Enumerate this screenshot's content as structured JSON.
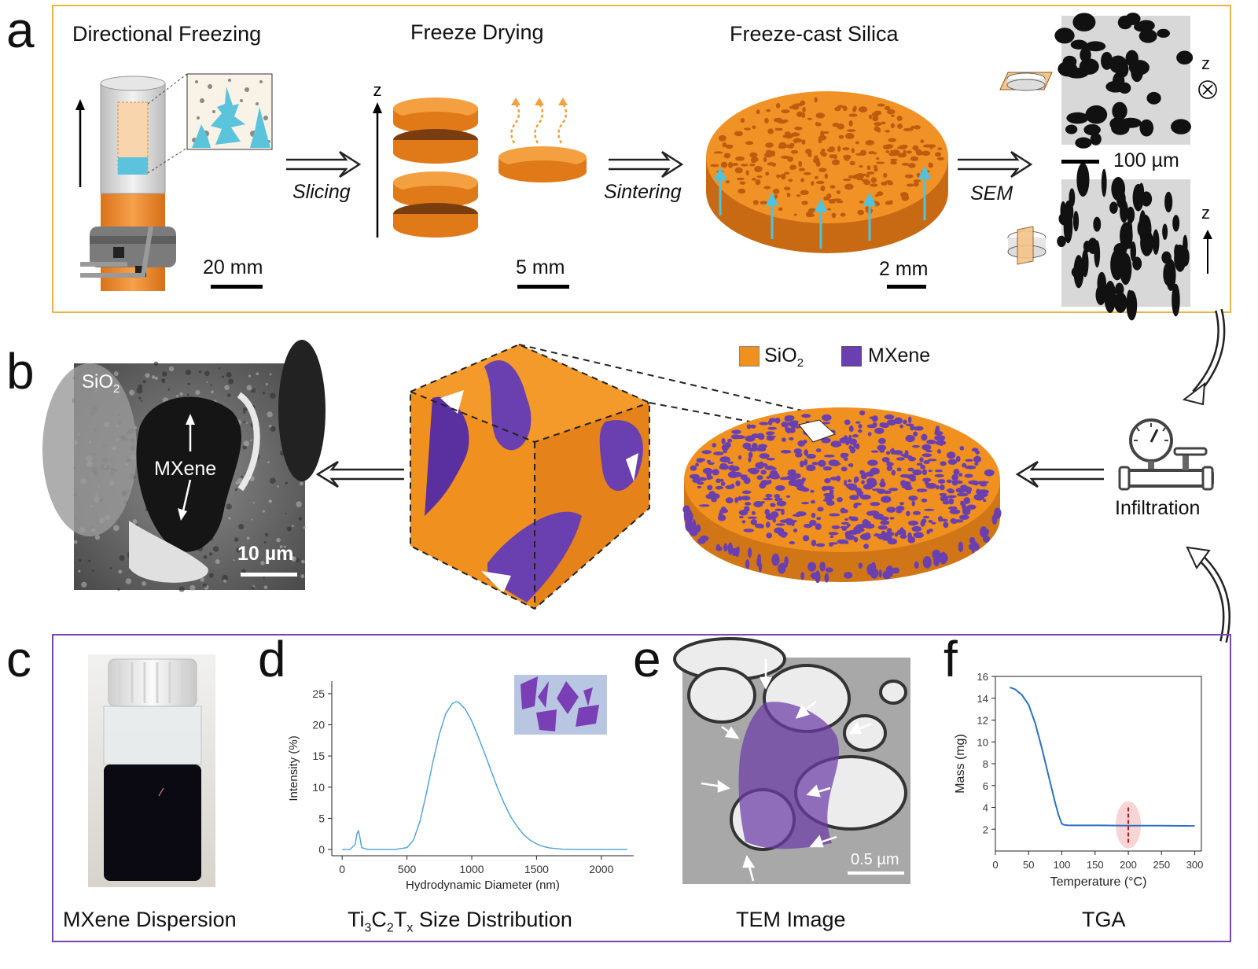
{
  "panels": {
    "a": "a",
    "b": "b",
    "c": "c",
    "d": "d",
    "e": "e",
    "f": "f"
  },
  "a": {
    "titles": [
      "Directional Freezing",
      "Freeze Drying",
      "Freeze-cast Silica"
    ],
    "steps": [
      "Slicing",
      "Sintering",
      "SEM"
    ],
    "scales": [
      "20 mm",
      "5 mm",
      "2 mm",
      "100 µm"
    ],
    "axis_z": "z"
  },
  "b": {
    "sem_sio2": "SiO",
    "sem_sub2": "2",
    "sem_mxene": "MXene",
    "sem_scale": "10 µm",
    "legend": {
      "sio2": "SiO",
      "sio2_sub": "2",
      "mxene": "MXene",
      "sio2_color": "#f0901e",
      "mxene_color": "#6a3fb0"
    },
    "infiltration": "Infiltration"
  },
  "captions": {
    "c": "MXene Dispersion",
    "d_pre": "Ti",
    "d_s1": "3",
    "d_mid1": "C",
    "d_s2": "2",
    "d_mid2": "T",
    "d_s3": "x",
    "d_post": " Size Distribution",
    "e": "TEM Image",
    "f": "TGA"
  },
  "e_scale": "0.5 µm",
  "chart_data": [
    {
      "type": "line",
      "xlabel": "Hydrodynamic Diameter (nm)",
      "ylabel": "Intensity (%)",
      "xlim": [
        -80,
        2250
      ],
      "ylim": [
        -1,
        27
      ],
      "xticks": [
        "0",
        "500",
        "1000",
        "1500",
        "2000"
      ],
      "yticks": [
        "0",
        "5",
        "10",
        "15",
        "20",
        "25"
      ],
      "x": [
        0,
        60,
        100,
        115,
        125,
        135,
        150,
        200,
        300,
        400,
        500,
        550,
        600,
        650,
        700,
        750,
        800,
        850,
        880,
        900,
        950,
        1000,
        1050,
        1100,
        1150,
        1200,
        1250,
        1300,
        1350,
        1400,
        1450,
        1500,
        1550,
        1600,
        1700,
        1800,
        2000,
        2200
      ],
      "y": [
        0,
        0,
        0.8,
        2.6,
        3.0,
        2.2,
        0.3,
        0,
        0,
        0,
        0.3,
        1.5,
        4.5,
        9,
        14,
        18.5,
        21.8,
        23.4,
        23.7,
        23.6,
        22.5,
        20.6,
        18.1,
        15.4,
        12.6,
        9.8,
        7.4,
        5.3,
        3.7,
        2.4,
        1.5,
        0.9,
        0.5,
        0.25,
        0.05,
        0,
        0,
        0
      ]
    },
    {
      "type": "line",
      "xlabel": "Temperature (°C)",
      "ylabel": "Mass (mg)",
      "xlim": [
        0,
        310
      ],
      "ylim": [
        0,
        16
      ],
      "xticks": [
        "0",
        "50",
        "100",
        "150",
        "200",
        "250",
        "300"
      ],
      "yticks": [
        "2",
        "4",
        "6",
        "8",
        "10",
        "12",
        "14",
        "16"
      ],
      "x": [
        22,
        30,
        40,
        50,
        60,
        70,
        80,
        90,
        95,
        100,
        103,
        110,
        150,
        200,
        250,
        300
      ],
      "y": [
        15.0,
        14.8,
        14.3,
        13.4,
        11.7,
        9.4,
        6.9,
        4.4,
        3.3,
        2.5,
        2.4,
        2.35,
        2.35,
        2.33,
        2.32,
        2.3
      ],
      "highlight_x": 200
    }
  ]
}
